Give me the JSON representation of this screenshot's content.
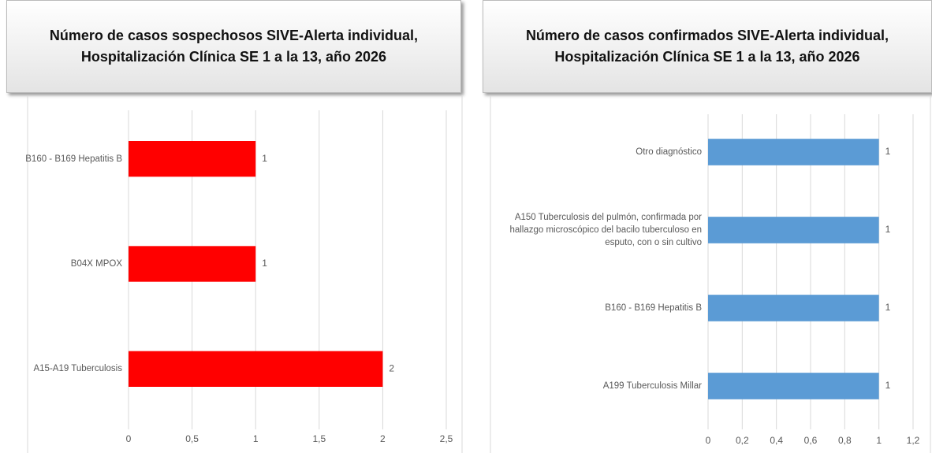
{
  "chart_data": [
    {
      "type": "bar",
      "orientation": "horizontal",
      "title": [
        "Número de casos sospechosos SIVE-Alerta individual,",
        "Hospitalización Clínica SE 1 a la 13, año 2026"
      ],
      "categories": [
        "B160 - B169 Hepatitis B",
        "B04X MPOX",
        "A15-A19 Tuberculosis"
      ],
      "values": [
        1,
        1,
        2
      ],
      "color": "#ff0000",
      "xlim": [
        0,
        2.5
      ],
      "xticks": [
        0,
        {
          "value": 0.5,
          "label": "0,5"
        },
        1,
        {
          "value": 1.5,
          "label": "1,5"
        },
        2,
        {
          "value": 2.5,
          "label": "2,5"
        }
      ],
      "grid": true
    },
    {
      "type": "bar",
      "orientation": "horizontal",
      "title": [
        "Número de casos confirmados SIVE-Alerta individual,",
        "Hospitalización Clínica SE 1 a la 13, año 2026"
      ],
      "categories": [
        "Otro diagnóstico",
        "A150 Tuberculosis del pulmón, confirmada por hallazgo microscópico del bacilo tuberculoso en esputo, con o sin cultivo",
        "B160 - B169 Hepatitis B",
        "A199 Tuberculosis Millar"
      ],
      "values": [
        1,
        1,
        1,
        1
      ],
      "color": "#5b9bd5",
      "xlim": [
        0,
        1.2
      ],
      "xticks": [
        0,
        {
          "value": 0.2,
          "label": "0,2"
        },
        {
          "value": 0.4,
          "label": "0,4"
        },
        {
          "value": 0.6,
          "label": "0,6"
        },
        {
          "value": 0.8,
          "label": "0,8"
        },
        1,
        {
          "value": 1.2,
          "label": "1,2"
        }
      ],
      "grid": true
    }
  ]
}
